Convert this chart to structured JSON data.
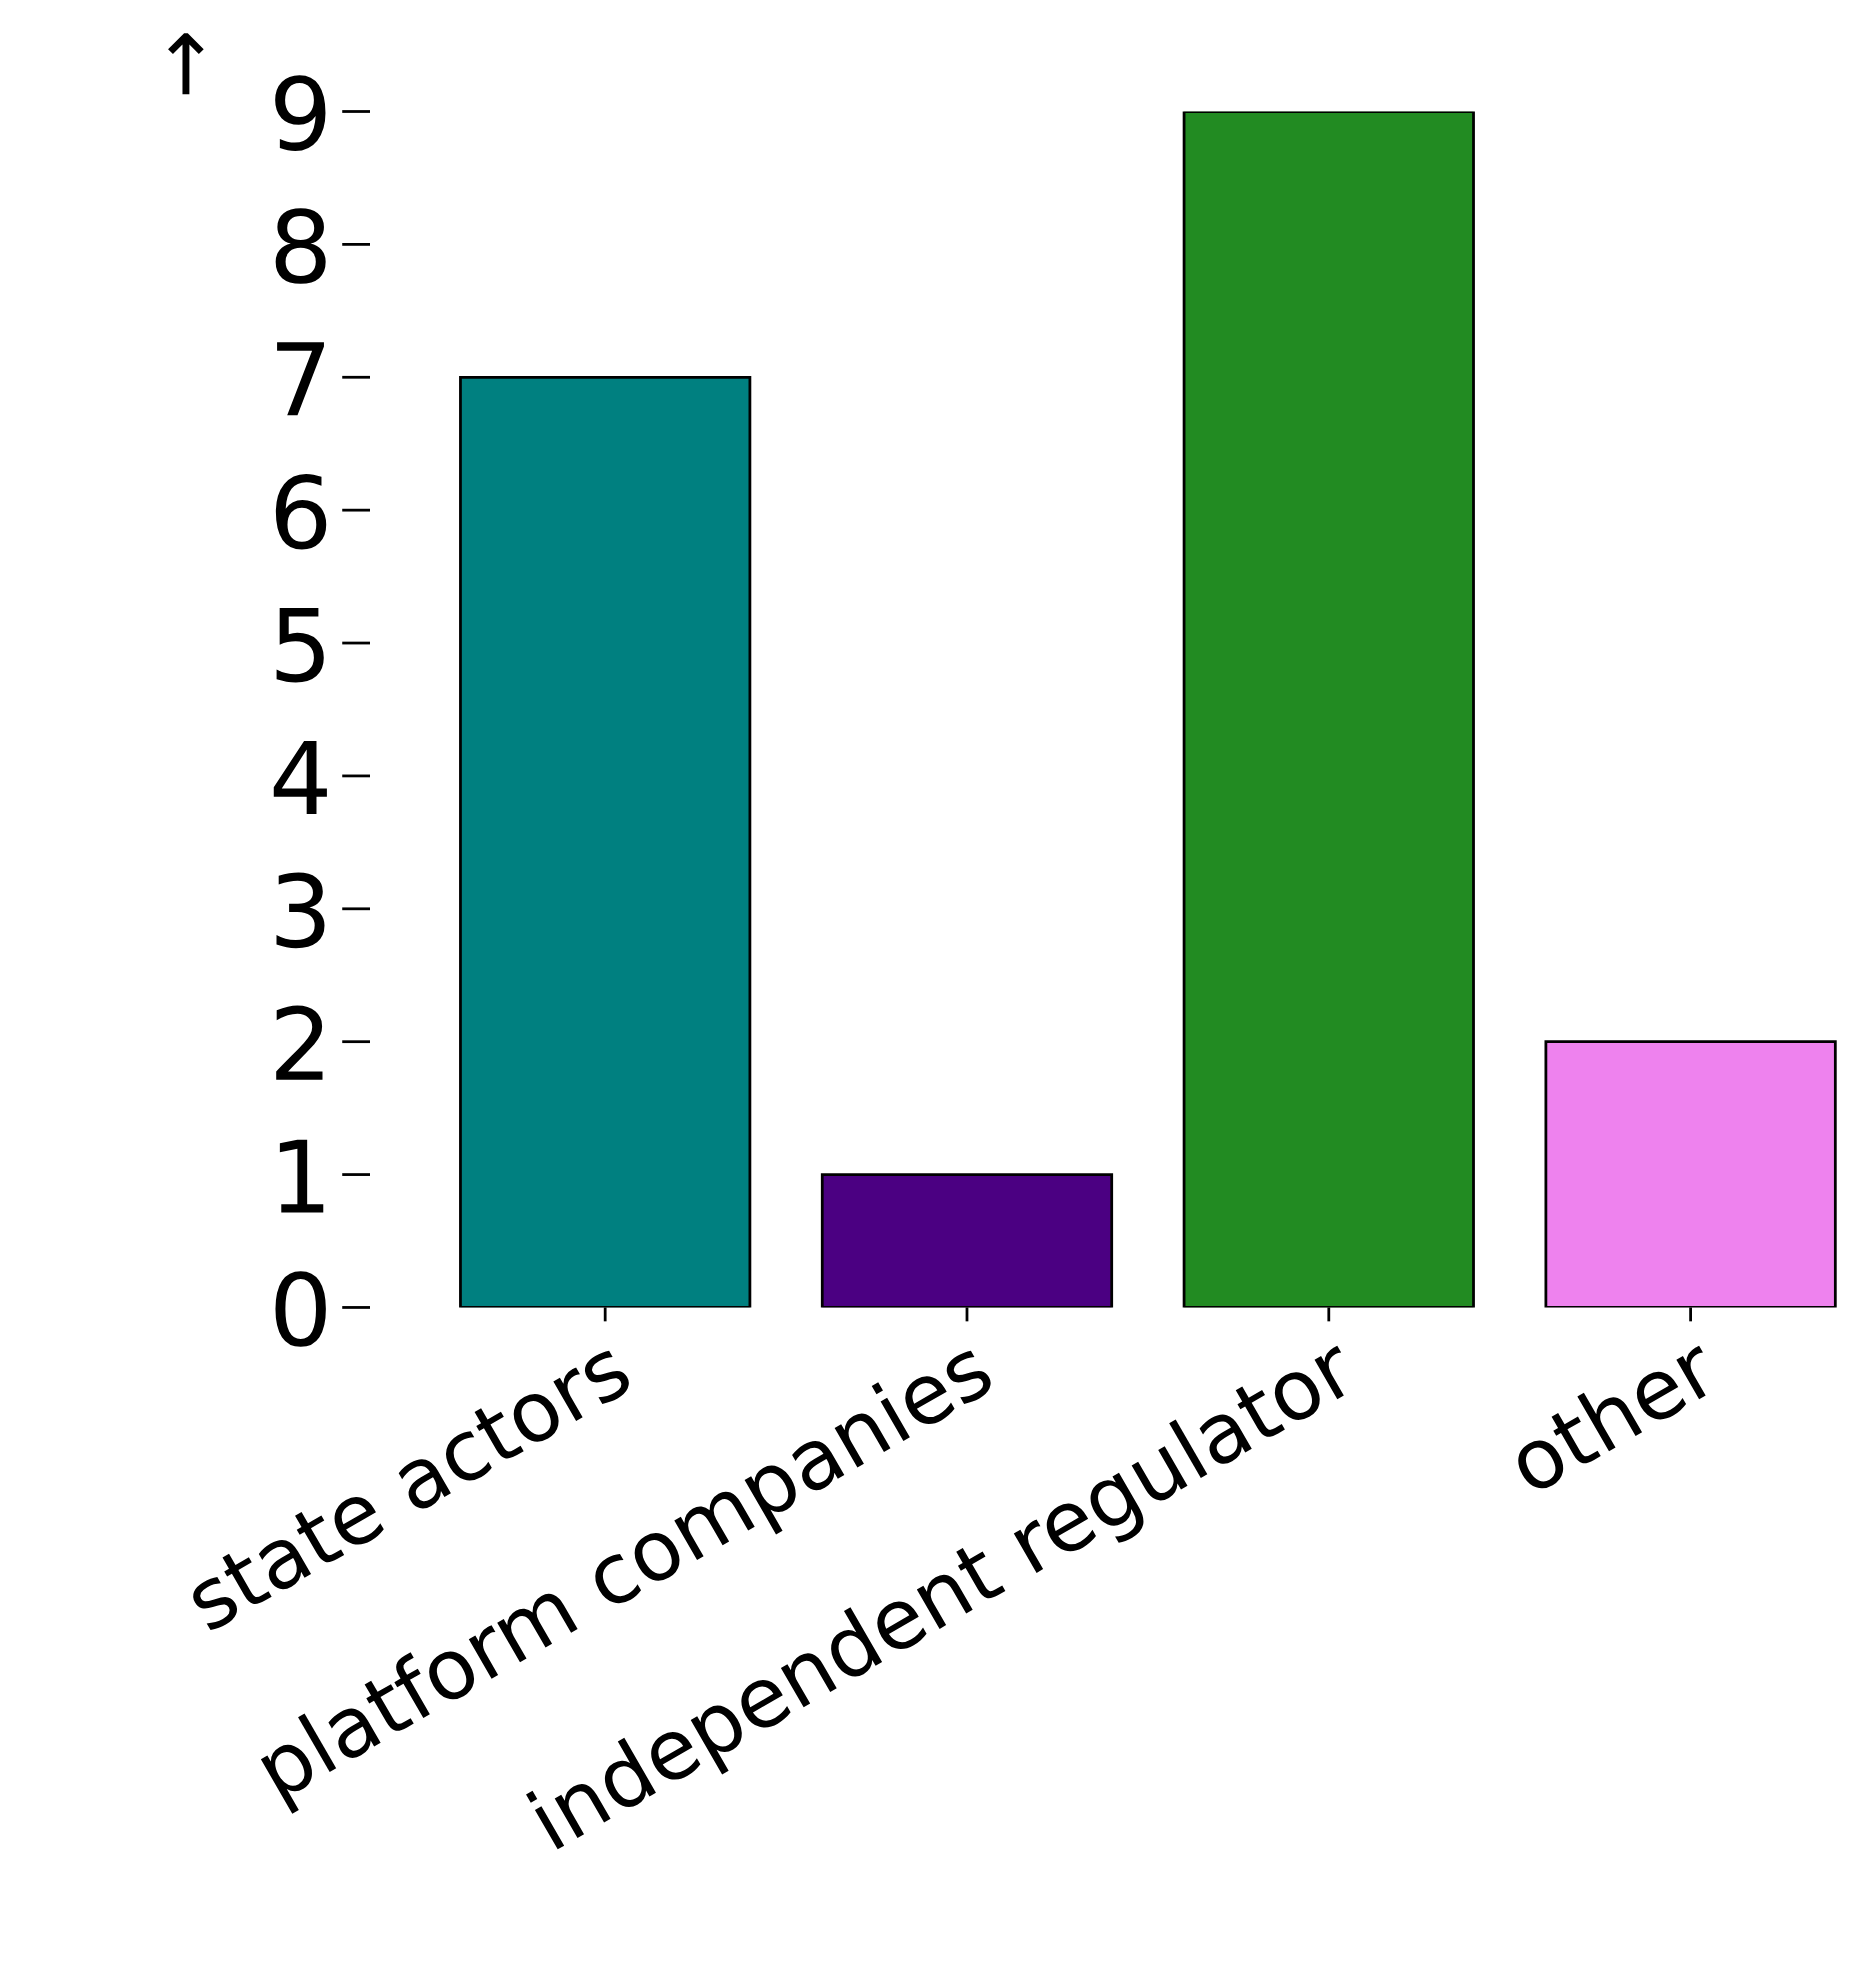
{
  "chart_data": {
    "type": "bar",
    "ylabel": "↑",
    "categories": [
      "state actors",
      "platform companies",
      "independent regulator",
      "other"
    ],
    "values": [
      7,
      1,
      9,
      2
    ],
    "colors": [
      "#008080",
      "#4b0082",
      "#228b22",
      "#ee82ee"
    ],
    "ylim": [
      0,
      9
    ],
    "yticks": [
      0,
      1,
      2,
      3,
      4,
      5,
      6,
      7,
      8,
      9
    ],
    "grid": false
  }
}
